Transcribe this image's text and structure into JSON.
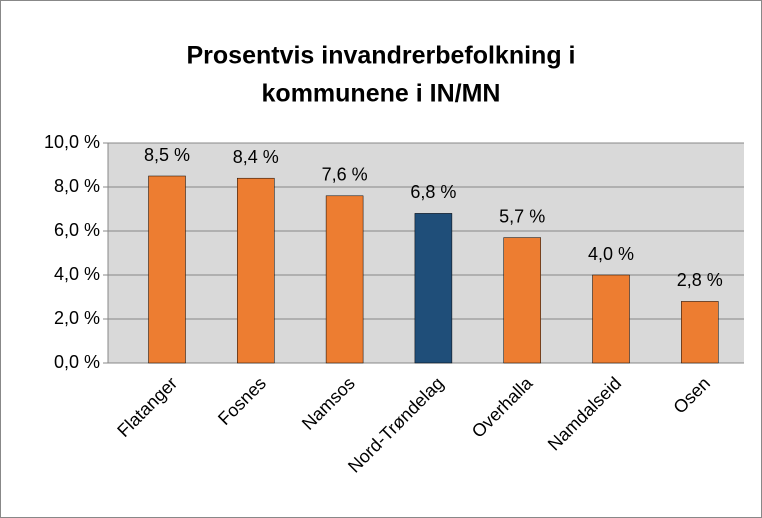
{
  "chart_data": {
    "type": "bar",
    "title": [
      "Prosentvis invandrerbefolkning i",
      "kommunene i IN/MN"
    ],
    "categories": [
      "Flatanger",
      "Fosnes",
      "Namsos",
      "Nord-Trøndelag",
      "Overhalla",
      "Namdalseid",
      "Osen"
    ],
    "values": [
      8.5,
      8.4,
      7.6,
      6.8,
      5.7,
      4.0,
      2.8
    ],
    "value_labels": [
      "8,5 %",
      "8,4 %",
      "7,6 %",
      "6,8 %",
      "5,7 %",
      "4,0 %",
      "2,8 %"
    ],
    "colors": [
      "#ed7d31",
      "#ed7d31",
      "#ed7d31",
      "#1f4e79",
      "#ed7d31",
      "#ed7d31",
      "#ed7d31"
    ],
    "ylim": [
      0,
      10
    ],
    "yticks": [
      {
        "value": 0,
        "label": "0,0 %"
      },
      {
        "value": 2,
        "label": "2,0 %"
      },
      {
        "value": 4,
        "label": "4,0 %"
      },
      {
        "value": 6,
        "label": "6,0 %"
      },
      {
        "value": 8,
        "label": "8,0 %"
      },
      {
        "value": 10,
        "label": "10,0 %"
      }
    ],
    "grid": true
  }
}
